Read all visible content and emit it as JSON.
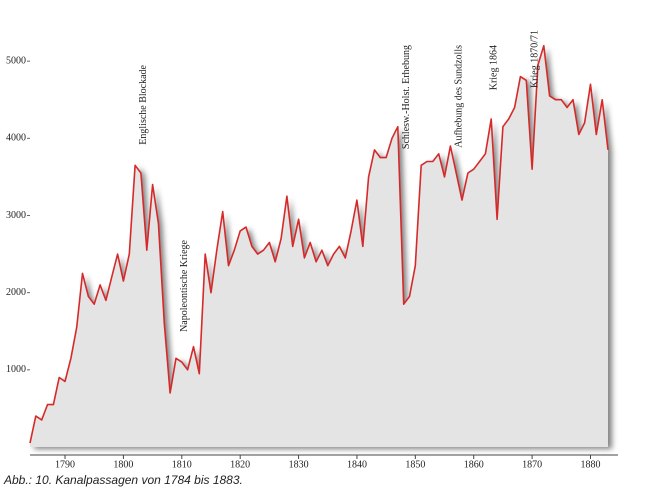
{
  "chart_data": {
    "type": "area",
    "x": [
      1784,
      1785,
      1786,
      1787,
      1788,
      1789,
      1790,
      1791,
      1792,
      1793,
      1794,
      1795,
      1796,
      1797,
      1798,
      1799,
      1800,
      1801,
      1802,
      1803,
      1804,
      1805,
      1806,
      1807,
      1808,
      1809,
      1810,
      1811,
      1812,
      1813,
      1814,
      1815,
      1816,
      1817,
      1818,
      1819,
      1820,
      1821,
      1822,
      1823,
      1824,
      1825,
      1826,
      1827,
      1828,
      1829,
      1830,
      1831,
      1832,
      1833,
      1834,
      1835,
      1836,
      1837,
      1838,
      1839,
      1840,
      1841,
      1842,
      1843,
      1844,
      1845,
      1846,
      1847,
      1848,
      1849,
      1850,
      1851,
      1852,
      1853,
      1854,
      1855,
      1856,
      1857,
      1858,
      1859,
      1860,
      1861,
      1862,
      1863,
      1864,
      1865,
      1866,
      1867,
      1868,
      1869,
      1870,
      1871,
      1872,
      1873,
      1874,
      1875,
      1876,
      1877,
      1878,
      1879,
      1880,
      1881,
      1882,
      1883
    ],
    "values": [
      50,
      400,
      350,
      550,
      550,
      900,
      850,
      1150,
      1550,
      2250,
      1950,
      1850,
      2100,
      1900,
      2200,
      2500,
      2150,
      2500,
      3650,
      3550,
      2550,
      3400,
      2900,
      1600,
      700,
      1150,
      1100,
      1000,
      1300,
      950,
      2500,
      2000,
      2550,
      3050,
      2350,
      2550,
      2800,
      2850,
      2600,
      2500,
      2550,
      2650,
      2400,
      2700,
      3250,
      2600,
      2950,
      2450,
      2650,
      2400,
      2550,
      2350,
      2500,
      2600,
      2450,
      2800,
      3200,
      2600,
      3500,
      3850,
      3750,
      3750,
      4000,
      4150,
      1850,
      1950,
      2350,
      3650,
      3700,
      3700,
      3800,
      3500,
      3900,
      3550,
      3200,
      3550,
      3600,
      3700,
      3800,
      4250,
      2950,
      4150,
      4250,
      4400,
      4800,
      4750,
      3600,
      4950,
      5200,
      4550,
      4500,
      4500,
      4400,
      4500,
      4050,
      4200,
      4700,
      4050,
      4500,
      3850
    ],
    "color": "#d62a2a",
    "fill": "#e4e4e4",
    "xlim": [
      1784,
      1883
    ],
    "xticks": [
      1790,
      1800,
      1810,
      1820,
      1830,
      1840,
      1850,
      1860,
      1870,
      1880
    ],
    "ylim": [
      0,
      5300
    ],
    "yticks": [
      1000,
      2000,
      3000,
      4000,
      5000
    ],
    "annotations": [
      {
        "text": "Englische Blockade",
        "x": 1803
      },
      {
        "text": "Napoleontische Kriege",
        "x": 1810
      },
      {
        "text": "Schlesw.-Holst. Erhebung",
        "x": 1848
      },
      {
        "text": "Aufhebung des Sundzolls",
        "x": 1857
      },
      {
        "text": "Krieg 1864",
        "x": 1863
      },
      {
        "text": "Krieg 1870/71",
        "x": 1870
      }
    ],
    "caption": "Abb.: 10.  Kanalpassagen von 1784 bis 1883."
  }
}
